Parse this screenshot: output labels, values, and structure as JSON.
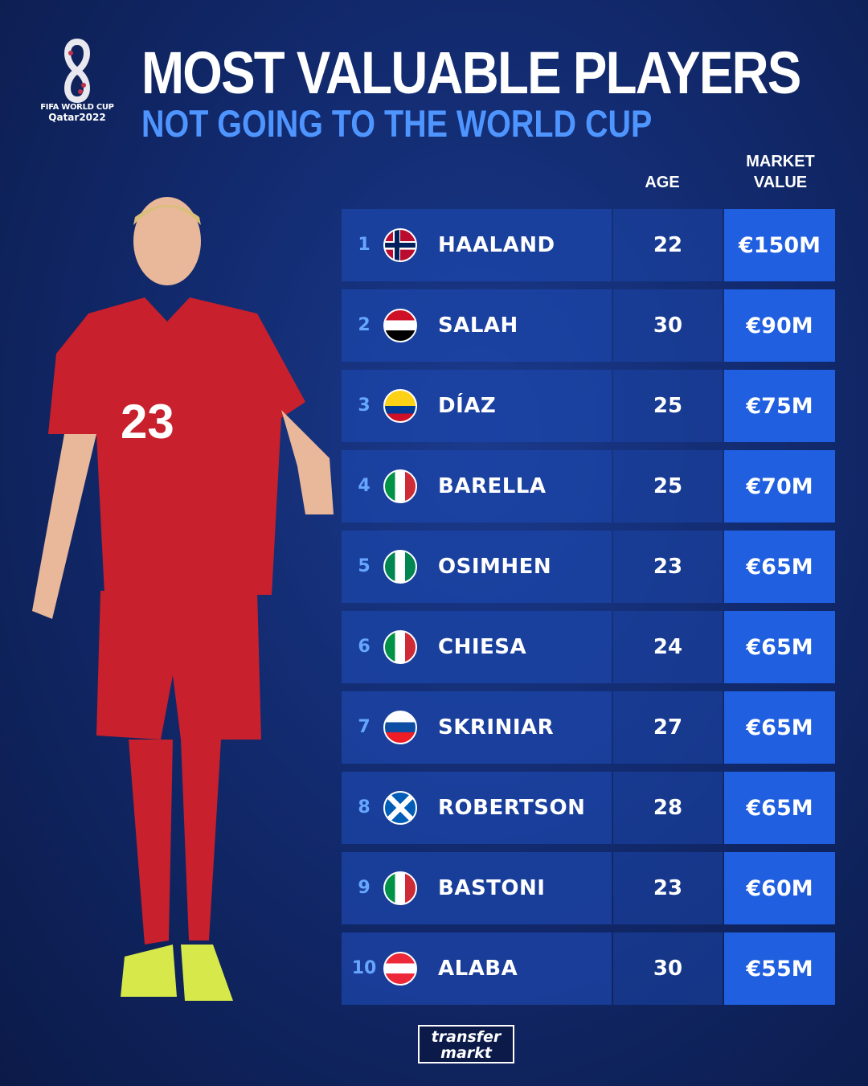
{
  "logo": {
    "line1": "FIFA WORLD CUP",
    "line2": "Qatar2022"
  },
  "header": {
    "title": "MOST VALUABLE PLAYERS",
    "subtitle": "NOT GOING TO THE WORLD CUP"
  },
  "columns": {
    "age": "AGE",
    "market_value_1": "MARKET",
    "market_value_2": "VALUE"
  },
  "colors": {
    "accent": "#4f95ff",
    "value_cell": "#1f5fe0",
    "background": "#122a6e"
  },
  "players": [
    {
      "rank": "1",
      "name": "HAALAND",
      "age": "22",
      "value": "€150M",
      "flag": "norway"
    },
    {
      "rank": "2",
      "name": "SALAH",
      "age": "30",
      "value": "€90M",
      "flag": "egypt"
    },
    {
      "rank": "3",
      "name": "DÍAZ",
      "age": "25",
      "value": "€75M",
      "flag": "colombia"
    },
    {
      "rank": "4",
      "name": "BARELLA",
      "age": "25",
      "value": "€70M",
      "flag": "italy"
    },
    {
      "rank": "5",
      "name": "OSIMHEN",
      "age": "23",
      "value": "€65M",
      "flag": "nigeria"
    },
    {
      "rank": "6",
      "name": "CHIESA",
      "age": "24",
      "value": "€65M",
      "flag": "italy"
    },
    {
      "rank": "7",
      "name": "SKRINIAR",
      "age": "27",
      "value": "€65M",
      "flag": "slovakia"
    },
    {
      "rank": "8",
      "name": "ROBERTSON",
      "age": "28",
      "value": "€65M",
      "flag": "scotland"
    },
    {
      "rank": "9",
      "name": "BASTONI",
      "age": "23",
      "value": "€60M",
      "flag": "italy"
    },
    {
      "rank": "10",
      "name": "ALABA",
      "age": "30",
      "value": "€55M",
      "flag": "austria"
    }
  ],
  "footer": {
    "brand_line1": "transfer",
    "brand_line2": "markt"
  }
}
